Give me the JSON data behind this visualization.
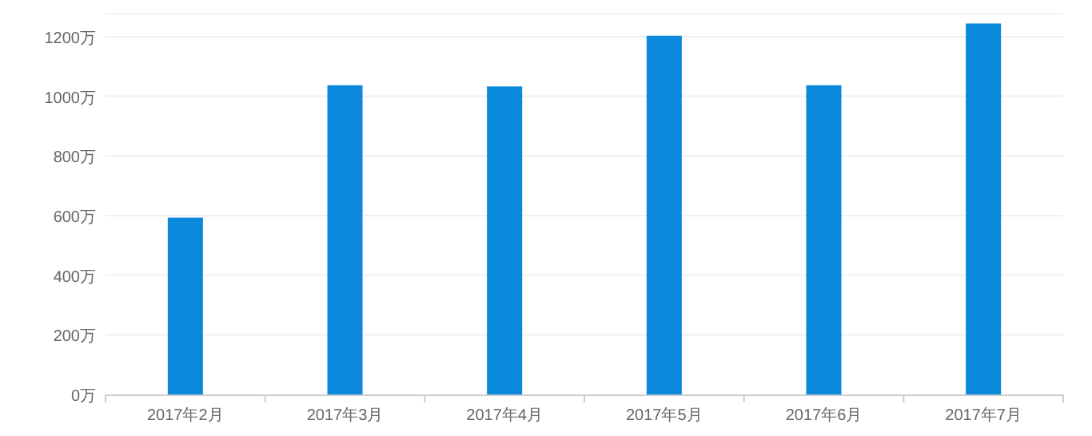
{
  "chart_data": {
    "type": "bar",
    "categories": [
      "2017年2月",
      "2017年3月",
      "2017年4月",
      "2017年5月",
      "2017年6月",
      "2017年7月"
    ],
    "values": [
      593,
      1037,
      1033,
      1203,
      1037,
      1244
    ],
    "color": "#0a88dc",
    "ylim": [
      0,
      1280
    ],
    "yticks": [
      {
        "value": 0,
        "label": "0万"
      },
      {
        "value": 200,
        "label": "200万"
      },
      {
        "value": 400,
        "label": "400万"
      },
      {
        "value": 600,
        "label": "600万"
      },
      {
        "value": 800,
        "label": "800万"
      },
      {
        "value": 1000,
        "label": "1000万"
      },
      {
        "value": 1200,
        "label": "1200万"
      }
    ],
    "grid": "y"
  }
}
